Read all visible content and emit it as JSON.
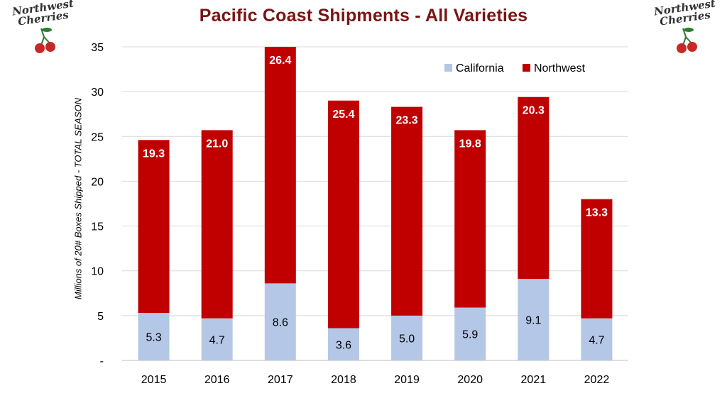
{
  "title": "Pacific Coast Shipments - All Varieties",
  "logo": {
    "line1": "Northwest",
    "line2": "Cherries"
  },
  "colors": {
    "california": "#b4c7e7",
    "northwest": "#c00000",
    "title": "#7a1414",
    "grid": "#d9d9d9"
  },
  "chart_data": {
    "type": "bar",
    "stacked": true,
    "title": "Pacific Coast Shipments - All Varieties",
    "ylabel": "Millions of 20# Boxes Shipped - TOTAL SEASON",
    "xlabel": "",
    "categories": [
      "2015",
      "2016",
      "2017",
      "2018",
      "2019",
      "2020",
      "2021",
      "2022"
    ],
    "series": [
      {
        "name": "California",
        "values": [
          5.3,
          4.7,
          8.6,
          3.6,
          5.0,
          5.9,
          9.1,
          4.7
        ]
      },
      {
        "name": "Northwest",
        "values": [
          19.3,
          21.0,
          26.4,
          25.4,
          23.3,
          19.8,
          20.3,
          13.3
        ]
      }
    ],
    "ylim": [
      0,
      35
    ],
    "yticks": [
      "-",
      "5",
      "10",
      "15",
      "20",
      "25",
      "30",
      "35"
    ],
    "grid": true,
    "legend": "top-right"
  }
}
